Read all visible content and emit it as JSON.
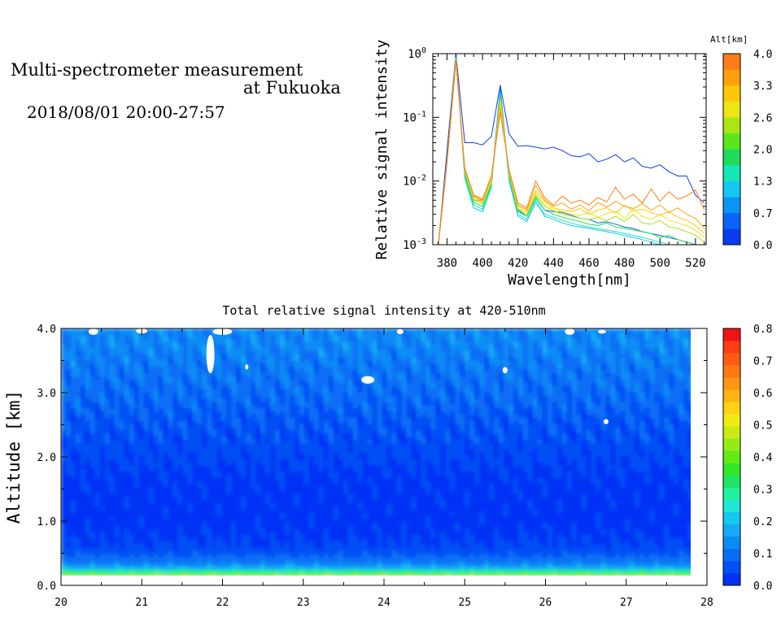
{
  "header": {
    "title_line1": "Multi-spectrometer measurement",
    "title_line2": "at Fukuoka",
    "datetime": "2018/08/01 20:00-27:57"
  },
  "chart_data": [
    {
      "type": "line",
      "xlabel": "Wavelength[nm]",
      "ylabel": "Relative signal intensity",
      "xlim": [
        372,
        526
      ],
      "ylim": [
        0.001,
        1
      ],
      "yscale": "log",
      "x_ticks": [
        380,
        400,
        420,
        440,
        460,
        480,
        500,
        520
      ],
      "y_ticks": [
        {
          "value": 0.001,
          "mant": "10",
          "exp": "-3"
        },
        {
          "value": 0.01,
          "mant": "10",
          "exp": "-2"
        },
        {
          "value": 0.1,
          "mant": "10",
          "exp": "-1"
        },
        {
          "value": 1,
          "mant": "10",
          "exp": "0"
        }
      ],
      "colorbar": {
        "label": "Alt[km]",
        "ticks": [
          "0.0",
          "0.7",
          "1.3",
          "2.0",
          "2.6",
          "3.3",
          "4.0"
        ],
        "colors": [
          "#0a3cf0",
          "#0a64f5",
          "#0a96f5",
          "#14c8f0",
          "#14e6b4",
          "#1edc5a",
          "#5ae61e",
          "#aae614",
          "#ebe614",
          "#ffc80a",
          "#ffa00a",
          "#ff7d14"
        ]
      },
      "x": [
        375,
        380,
        385,
        390,
        395,
        400,
        405,
        410,
        415,
        420,
        425,
        430,
        435,
        440,
        445,
        450,
        455,
        460,
        465,
        470,
        475,
        480,
        485,
        490,
        495,
        500,
        505,
        510,
        515,
        520,
        525
      ],
      "series": [
        {
          "color": "#0a3cf0",
          "values": [
            0.0009,
            0.03,
            1.0,
            0.04,
            0.04,
            0.037,
            0.05,
            0.32,
            0.055,
            0.035,
            0.036,
            0.034,
            0.032,
            0.034,
            0.03,
            0.025,
            0.024,
            0.027,
            0.02,
            0.022,
            0.026,
            0.02,
            0.023,
            0.017,
            0.016,
            0.018,
            0.014,
            0.012,
            0.012,
            0.006,
            0.0045
          ]
        },
        {
          "color": "#0a64f5",
          "values": [
            0.0009,
            0.022,
            0.9,
            0.012,
            0.005,
            0.005,
            0.009,
            0.29,
            0.011,
            0.0035,
            0.0028,
            0.0055,
            0.0035,
            0.0033,
            0.0032,
            0.0029,
            0.0026,
            0.0025,
            0.0022,
            0.0023,
            0.0021,
            0.0019,
            0.0018,
            0.0016,
            0.0015,
            0.0014,
            0.0013,
            0.0012,
            0.0011,
            0.001,
            0.0009
          ]
        },
        {
          "color": "#14c8f0",
          "values": [
            0.0009,
            0.021,
            0.88,
            0.011,
            0.0038,
            0.0033,
            0.008,
            0.26,
            0.01,
            0.0028,
            0.0023,
            0.0046,
            0.0028,
            0.0025,
            0.0022,
            0.002,
            0.0019,
            0.0018,
            0.0017,
            0.0016,
            0.0015,
            0.0014,
            0.0013,
            0.0012,
            0.0011,
            0.001,
            0.00095,
            0.0009,
            0.0009,
            0.0009,
            0.0009
          ]
        },
        {
          "color": "#14e6b4",
          "values": [
            0.0009,
            0.02,
            0.86,
            0.012,
            0.0042,
            0.0036,
            0.0085,
            0.24,
            0.011,
            0.003,
            0.0025,
            0.005,
            0.003,
            0.0027,
            0.0024,
            0.0022,
            0.002,
            0.0019,
            0.0018,
            0.0017,
            0.0016,
            0.0015,
            0.0014,
            0.0013,
            0.0012,
            0.0011,
            0.001,
            0.00095,
            0.0009,
            0.0009,
            0.0009
          ]
        },
        {
          "color": "#1edc5a",
          "values": [
            0.0009,
            0.02,
            0.85,
            0.013,
            0.0046,
            0.004,
            0.009,
            0.22,
            0.012,
            0.0033,
            0.0028,
            0.0056,
            0.0035,
            0.003,
            0.0027,
            0.0025,
            0.0023,
            0.0021,
            0.002,
            0.0022,
            0.0019,
            0.0018,
            0.0017,
            0.0016,
            0.0015,
            0.0013,
            0.0014,
            0.0012,
            0.0011,
            0.001,
            0.0009
          ]
        },
        {
          "color": "#aae614",
          "values": [
            0.0009,
            0.02,
            0.83,
            0.014,
            0.005,
            0.0044,
            0.0095,
            0.2,
            0.013,
            0.0036,
            0.003,
            0.006,
            0.004,
            0.0034,
            0.003,
            0.0028,
            0.0026,
            0.0025,
            0.0027,
            0.0024,
            0.0028,
            0.0023,
            0.003,
            0.0022,
            0.0021,
            0.0024,
            0.0019,
            0.0018,
            0.0016,
            0.0014,
            0.0011
          ]
        },
        {
          "color": "#ebe614",
          "values": [
            0.0009,
            0.02,
            0.82,
            0.014,
            0.0052,
            0.0046,
            0.01,
            0.18,
            0.013,
            0.0037,
            0.0032,
            0.0064,
            0.0043,
            0.0036,
            0.0033,
            0.003,
            0.0029,
            0.0032,
            0.0027,
            0.0031,
            0.0034,
            0.0026,
            0.0036,
            0.0028,
            0.0025,
            0.003,
            0.0024,
            0.0022,
            0.002,
            0.0017,
            0.0013
          ]
        },
        {
          "color": "#ffc80a",
          "values": [
            0.0009,
            0.02,
            0.8,
            0.015,
            0.0055,
            0.0048,
            0.011,
            0.16,
            0.014,
            0.004,
            0.0034,
            0.007,
            0.0048,
            0.0038,
            0.0035,
            0.0033,
            0.0037,
            0.003,
            0.0035,
            0.0038,
            0.0031,
            0.0042,
            0.0034,
            0.0036,
            0.0032,
            0.0029,
            0.0033,
            0.0027,
            0.0024,
            0.002,
            0.0015
          ]
        },
        {
          "color": "#ffa00a",
          "values": [
            0.0009,
            0.02,
            0.78,
            0.015,
            0.0058,
            0.005,
            0.011,
            0.14,
            0.014,
            0.0042,
            0.0036,
            0.0085,
            0.005,
            0.004,
            0.0045,
            0.0036,
            0.0042,
            0.0034,
            0.0046,
            0.0039,
            0.0048,
            0.004,
            0.0037,
            0.0044,
            0.0035,
            0.0042,
            0.0032,
            0.0038,
            0.003,
            0.0026,
            0.0018
          ]
        },
        {
          "color": "#ff7d14",
          "values": [
            0.0009,
            0.02,
            0.75,
            0.016,
            0.006,
            0.0052,
            0.012,
            0.12,
            0.015,
            0.0045,
            0.0038,
            0.01,
            0.0055,
            0.0042,
            0.0058,
            0.0045,
            0.005,
            0.0042,
            0.0055,
            0.0047,
            0.008,
            0.0052,
            0.0062,
            0.0045,
            0.0075,
            0.0048,
            0.0068,
            0.0052,
            0.0058,
            0.0072,
            0.0035
          ]
        }
      ]
    },
    {
      "type": "heatmap",
      "title": "Total relative signal intensity at 420-510nm",
      "xlabel": "",
      "ylabel": "Altitude [km]",
      "xlim": [
        20,
        28
      ],
      "ylim": [
        0,
        4
      ],
      "data_x_range": [
        20,
        27.83
      ],
      "data_y_range": [
        0.15,
        4.0
      ],
      "x_ticks": [
        "20",
        "21",
        "22",
        "23",
        "24",
        "25",
        "26",
        "27",
        "28"
      ],
      "y_ticks": [
        "0.0",
        "1.0",
        "2.0",
        "3.0",
        "4.0"
      ],
      "colorbar": {
        "ticks": [
          "0.0",
          "0.1",
          "0.2",
          "0.3",
          "0.4",
          "0.5",
          "0.6",
          "0.7",
          "0.8"
        ],
        "colors": [
          "#0032f5",
          "#0050f5",
          "#0a6ef5",
          "#0a8cf5",
          "#14aaf5",
          "#14c8f0",
          "#1ee6d2",
          "#1ef0a0",
          "#1ee664",
          "#32e628",
          "#64eb14",
          "#96eb14",
          "#c8eb14",
          "#f0eb14",
          "#ffd214",
          "#ffb414",
          "#ff9614",
          "#ff7814",
          "#ff5a14",
          "#ff3c14",
          "#f01414"
        ]
      },
      "profile": [
        {
          "alt": 0.15,
          "value": 0.45
        },
        {
          "alt": 0.2,
          "value": 0.36
        },
        {
          "alt": 0.25,
          "value": 0.2
        },
        {
          "alt": 0.3,
          "value": 0.16
        },
        {
          "alt": 0.35,
          "value": 0.11
        },
        {
          "alt": 0.6,
          "value": 0.04
        },
        {
          "alt": 1.0,
          "value": 0.025
        },
        {
          "alt": 1.6,
          "value": 0.03
        },
        {
          "alt": 2.2,
          "value": 0.045
        },
        {
          "alt": 2.8,
          "value": 0.075
        },
        {
          "alt": 3.3,
          "value": 0.1
        },
        {
          "alt": 3.8,
          "value": 0.12
        },
        {
          "alt": 4.0,
          "value": 0.12
        }
      ]
    }
  ]
}
